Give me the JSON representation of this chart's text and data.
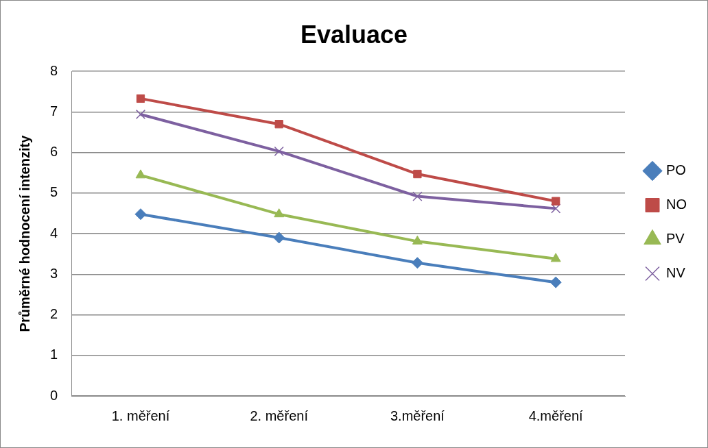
{
  "chart_data": {
    "type": "line",
    "title": "Evaluace",
    "ylabel": "Průměrné hodnocení intenzity",
    "categories": [
      "1. měření",
      "2. měření",
      "3.měření",
      "4.měření"
    ],
    "series": [
      {
        "name": "PO",
        "color": "#4a7ebb",
        "marker": "diamond",
        "values": [
          4.48,
          3.9,
          3.28,
          2.8
        ]
      },
      {
        "name": "NO",
        "color": "#be4b48",
        "marker": "square",
        "values": [
          7.33,
          6.7,
          5.47,
          4.8
        ]
      },
      {
        "name": "PV",
        "color": "#98b954",
        "marker": "triangle",
        "values": [
          5.44,
          4.48,
          3.81,
          3.38
        ]
      },
      {
        "name": "NV",
        "color": "#7d60a0",
        "marker": "cross",
        "values": [
          6.94,
          6.03,
          4.92,
          4.62
        ]
      }
    ],
    "ylim": [
      0,
      8
    ],
    "yticks": [
      0,
      1,
      2,
      3,
      4,
      5,
      6,
      7,
      8
    ],
    "grid": "y",
    "legend": "right",
    "line_style": "solid"
  }
}
